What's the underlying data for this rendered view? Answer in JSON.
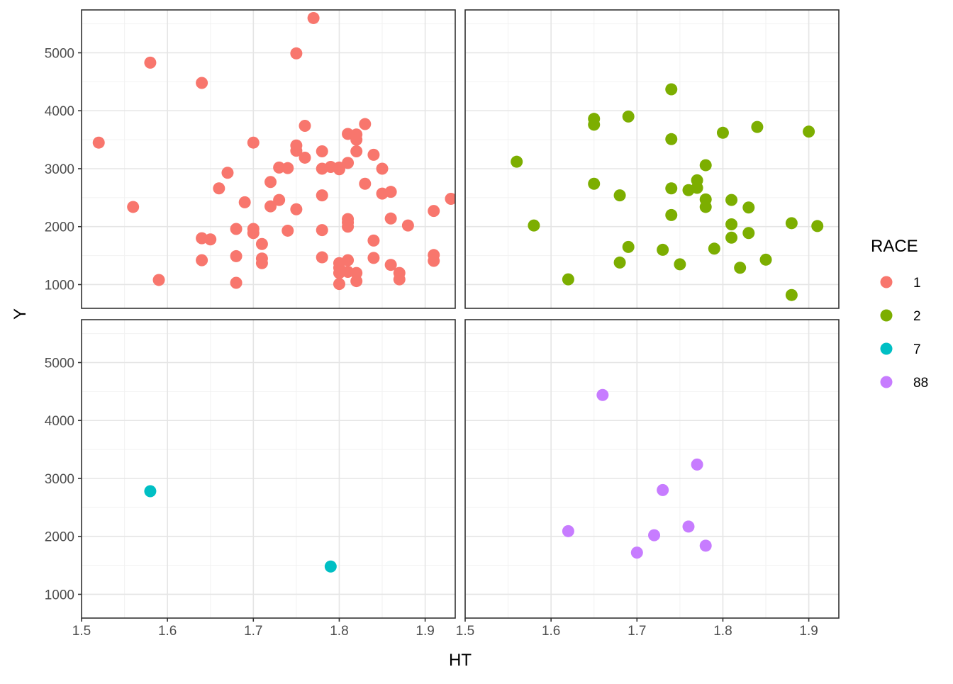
{
  "chart_data": {
    "type": "scatter",
    "facet_layout": "2x2",
    "xlabel": "HT",
    "ylabel": "Y",
    "xlim": [
      1.5,
      1.935
    ],
    "ylim": [
      590,
      5740
    ],
    "x_ticks": [
      "1.5",
      "1.6",
      "1.7",
      "1.8",
      "1.9"
    ],
    "x_tick_values": [
      1.5,
      1.6,
      1.7,
      1.8,
      1.9
    ],
    "y_ticks": [
      "1000",
      "2000",
      "3000",
      "4000",
      "5000"
    ],
    "y_tick_values": [
      1000,
      2000,
      3000,
      4000,
      5000
    ],
    "grid": true,
    "legend": {
      "title": "RACE",
      "position": "right",
      "entries": [
        {
          "label": "1",
          "color": "#F8766D"
        },
        {
          "label": "2",
          "color": "#7CAE00"
        },
        {
          "label": "7",
          "color": "#00BFC4"
        },
        {
          "label": "88",
          "color": "#C77CFF"
        }
      ]
    },
    "panels": [
      {
        "race": "1",
        "color": "#F8766D",
        "points": [
          [
            1.52,
            3450
          ],
          [
            1.56,
            2340
          ],
          [
            1.58,
            4830
          ],
          [
            1.59,
            1080
          ],
          [
            1.64,
            4480
          ],
          [
            1.64,
            1800
          ],
          [
            1.64,
            1420
          ],
          [
            1.65,
            1780
          ],
          [
            1.66,
            2660
          ],
          [
            1.67,
            2930
          ],
          [
            1.68,
            1960
          ],
          [
            1.68,
            1490
          ],
          [
            1.68,
            1030
          ],
          [
            1.69,
            2420
          ],
          [
            1.7,
            3450
          ],
          [
            1.7,
            1960
          ],
          [
            1.7,
            1890
          ],
          [
            1.71,
            1700
          ],
          [
            1.71,
            1450
          ],
          [
            1.71,
            1370
          ],
          [
            1.72,
            2770
          ],
          [
            1.72,
            2350
          ],
          [
            1.73,
            3020
          ],
          [
            1.73,
            2460
          ],
          [
            1.74,
            3010
          ],
          [
            1.74,
            1930
          ],
          [
            1.75,
            4990
          ],
          [
            1.75,
            3400
          ],
          [
            1.75,
            3310
          ],
          [
            1.75,
            2300
          ],
          [
            1.76,
            3740
          ],
          [
            1.76,
            3190
          ],
          [
            1.77,
            5600
          ],
          [
            1.78,
            3300
          ],
          [
            1.78,
            3000
          ],
          [
            1.78,
            2540
          ],
          [
            1.78,
            1940
          ],
          [
            1.78,
            1470
          ],
          [
            1.79,
            3030
          ],
          [
            1.8,
            3020
          ],
          [
            1.8,
            2990
          ],
          [
            1.8,
            1370
          ],
          [
            1.8,
            1290
          ],
          [
            1.8,
            1200
          ],
          [
            1.8,
            1010
          ],
          [
            1.81,
            3600
          ],
          [
            1.81,
            3100
          ],
          [
            1.81,
            2130
          ],
          [
            1.81,
            2070
          ],
          [
            1.81,
            2000
          ],
          [
            1.81,
            1420
          ],
          [
            1.81,
            1220
          ],
          [
            1.82,
            3590
          ],
          [
            1.82,
            3500
          ],
          [
            1.82,
            3300
          ],
          [
            1.82,
            1200
          ],
          [
            1.82,
            1060
          ],
          [
            1.83,
            3770
          ],
          [
            1.83,
            2740
          ],
          [
            1.84,
            3240
          ],
          [
            1.84,
            1760
          ],
          [
            1.84,
            1460
          ],
          [
            1.85,
            3000
          ],
          [
            1.85,
            2570
          ],
          [
            1.86,
            2600
          ],
          [
            1.86,
            2140
          ],
          [
            1.86,
            1340
          ],
          [
            1.87,
            1200
          ],
          [
            1.87,
            1090
          ],
          [
            1.88,
            2020
          ],
          [
            1.91,
            2270
          ],
          [
            1.91,
            1510
          ],
          [
            1.91,
            1410
          ],
          [
            1.93,
            2480
          ]
        ]
      },
      {
        "race": "2",
        "color": "#7CAE00",
        "points": [
          [
            1.56,
            3120
          ],
          [
            1.58,
            2020
          ],
          [
            1.62,
            1090
          ],
          [
            1.65,
            3860
          ],
          [
            1.65,
            3760
          ],
          [
            1.65,
            2740
          ],
          [
            1.68,
            2540
          ],
          [
            1.68,
            1380
          ],
          [
            1.69,
            3900
          ],
          [
            1.69,
            1650
          ],
          [
            1.73,
            1600
          ],
          [
            1.74,
            4370
          ],
          [
            1.74,
            3510
          ],
          [
            1.74,
            2660
          ],
          [
            1.74,
            2200
          ],
          [
            1.75,
            1350
          ],
          [
            1.76,
            2630
          ],
          [
            1.77,
            2800
          ],
          [
            1.77,
            2670
          ],
          [
            1.78,
            3060
          ],
          [
            1.78,
            2470
          ],
          [
            1.78,
            2340
          ],
          [
            1.79,
            1620
          ],
          [
            1.8,
            3620
          ],
          [
            1.81,
            2460
          ],
          [
            1.81,
            2040
          ],
          [
            1.81,
            1810
          ],
          [
            1.82,
            1290
          ],
          [
            1.83,
            2330
          ],
          [
            1.83,
            1890
          ],
          [
            1.84,
            3720
          ],
          [
            1.85,
            1430
          ],
          [
            1.88,
            2060
          ],
          [
            1.88,
            820
          ],
          [
            1.9,
            3640
          ],
          [
            1.91,
            2010
          ]
        ]
      },
      {
        "race": "7",
        "color": "#00BFC4",
        "points": [
          [
            1.58,
            2780
          ],
          [
            1.79,
            1480
          ]
        ]
      },
      {
        "race": "88",
        "color": "#C77CFF",
        "points": [
          [
            1.62,
            2090
          ],
          [
            1.66,
            4440
          ],
          [
            1.7,
            1720
          ],
          [
            1.72,
            2020
          ],
          [
            1.73,
            2800
          ],
          [
            1.76,
            2170
          ],
          [
            1.77,
            3240
          ],
          [
            1.78,
            1840
          ]
        ]
      }
    ]
  }
}
